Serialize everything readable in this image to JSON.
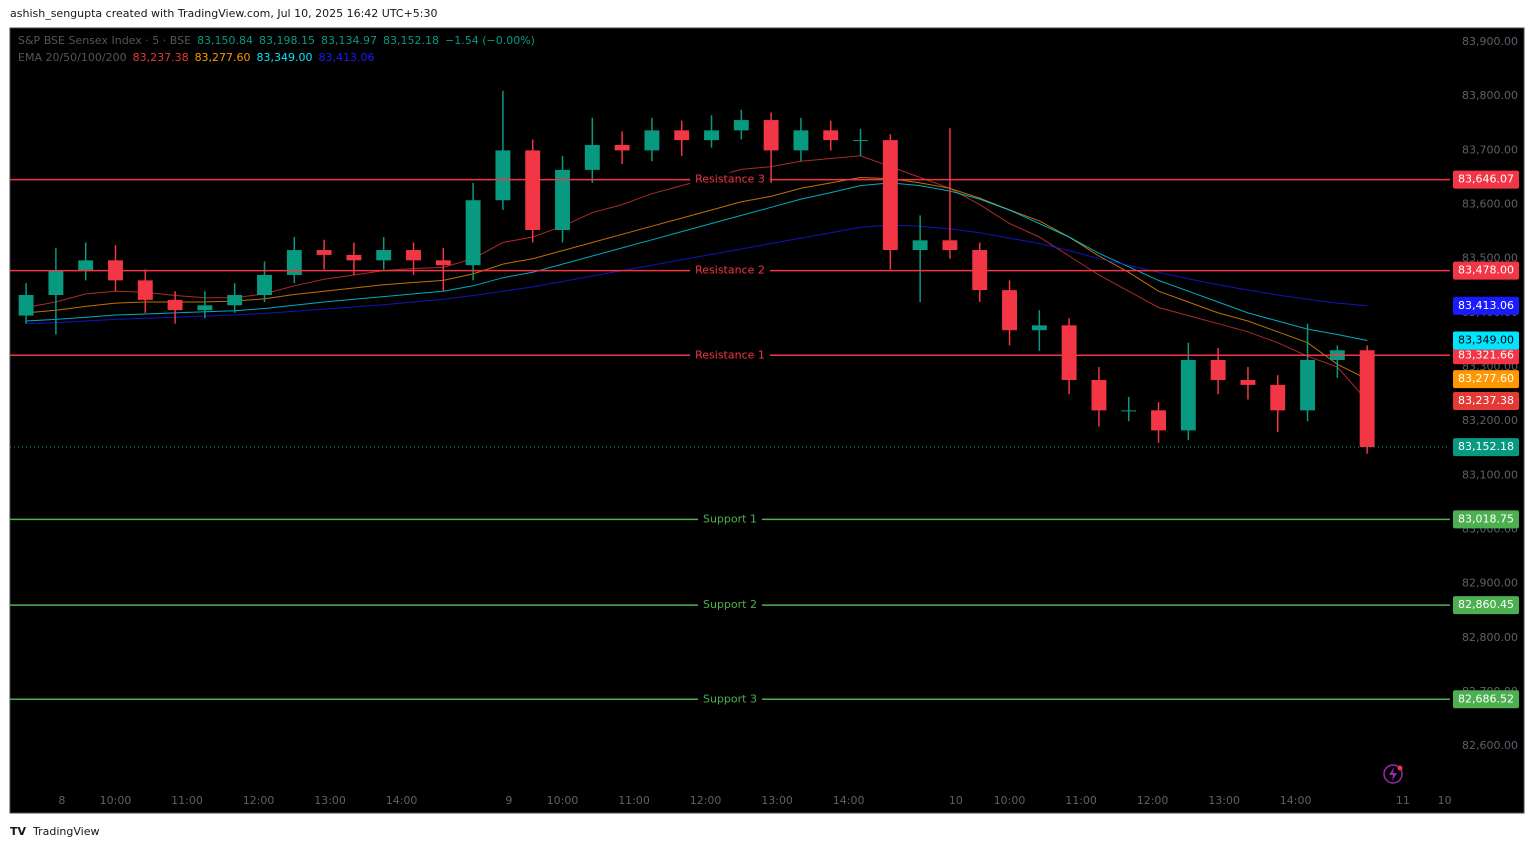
{
  "header": {
    "caption": "ashish_sengupta created with TradingView.com, Jul 10, 2025 16:42 UTC+5:30",
    "footer": "TradingView"
  },
  "chart_data": {
    "type": "candlestick",
    "legend": {
      "title": "S&P BSE Sensex Index · 5 · BSE",
      "ohlc": [
        "83,150.84",
        "83,198.15",
        "83,134.97",
        "83,152.18"
      ],
      "change": "−1.54 (−0.00%)",
      "ema_title": "EMA 20/50/100/200"
    },
    "up_color": "#089981",
    "down_color": "#f23645",
    "xlim": [
      -8.7,
      232.9
    ],
    "xticks": [
      {
        "value": 0,
        "label": "8"
      },
      {
        "value": 9,
        "label": "10:00"
      },
      {
        "value": 21,
        "label": "11:00"
      },
      {
        "value": 33,
        "label": "12:00"
      },
      {
        "value": 45,
        "label": "13:00"
      },
      {
        "value": 57,
        "label": "14:00"
      },
      {
        "value": 75,
        "label": "9"
      },
      {
        "value": 84,
        "label": "10:00"
      },
      {
        "value": 96,
        "label": "11:00"
      },
      {
        "value": 108,
        "label": "12:00"
      },
      {
        "value": 120,
        "label": "13:00"
      },
      {
        "value": 132,
        "label": "14:00"
      },
      {
        "value": 150,
        "label": "10"
      },
      {
        "value": 159,
        "label": "10:00"
      },
      {
        "value": 171,
        "label": "11:00"
      },
      {
        "value": 183,
        "label": "12:00"
      },
      {
        "value": 195,
        "label": "13:00"
      },
      {
        "value": 207,
        "label": "14:00"
      },
      {
        "value": 225,
        "label": "11"
      },
      {
        "value": 232,
        "label": "10"
      }
    ],
    "ylim": [
      82519,
      83926
    ],
    "yticks": [
      {
        "value": 82600,
        "label": "82,600.00"
      },
      {
        "value": 82700,
        "label": "82,700.00"
      },
      {
        "value": 82800,
        "label": "82,800.00"
      },
      {
        "value": 82900,
        "label": "82,900.00"
      },
      {
        "value": 83000,
        "label": "83,000.00"
      },
      {
        "value": 83100,
        "label": "83,100.00"
      },
      {
        "value": 83200,
        "label": "83,200.00"
      },
      {
        "value": 83300,
        "label": "83,300.00"
      },
      {
        "value": 83400,
        "label": "83,400.00"
      },
      {
        "value": 83500,
        "label": "83,500.00"
      },
      {
        "value": 83600,
        "label": "83,600.00"
      },
      {
        "value": 83700,
        "label": "83,700.00"
      },
      {
        "value": 83800,
        "label": "83,800.00"
      },
      {
        "value": 83900,
        "label": "83,900.00"
      }
    ],
    "x": [
      -6,
      -1,
      4,
      9,
      14,
      19,
      24,
      29,
      34,
      39,
      44,
      49,
      54,
      59,
      64,
      69,
      74,
      79,
      84,
      89,
      94,
      99,
      104,
      109,
      114,
      119,
      124,
      129,
      134,
      139,
      144,
      149,
      154,
      159,
      164,
      169,
      174,
      179,
      184,
      189,
      194,
      199,
      204,
      209,
      214,
      219
    ],
    "ohlc": [
      [
        83395,
        83455,
        83380,
        83433
      ],
      [
        83433,
        83520,
        83360,
        83479
      ],
      [
        83479,
        83530,
        83460,
        83497
      ],
      [
        83497,
        83525,
        83440,
        83460
      ],
      [
        83460,
        83480,
        83400,
        83424
      ],
      [
        83424,
        83440,
        83380,
        83405
      ],
      [
        83405,
        83440,
        83390,
        83414
      ],
      [
        83414,
        83455,
        83400,
        83433
      ],
      [
        83433,
        83495,
        83420,
        83470
      ],
      [
        83470,
        83540,
        83455,
        83516
      ],
      [
        83516,
        83535,
        83480,
        83507
      ],
      [
        83507,
        83530,
        83470,
        83497
      ],
      [
        83497,
        83540,
        83480,
        83516
      ],
      [
        83516,
        83530,
        83470,
        83497
      ],
      [
        83497,
        83520,
        83440,
        83488
      ],
      [
        83488,
        83640,
        83460,
        83608
      ],
      [
        83608,
        83810,
        83590,
        83700
      ],
      [
        83700,
        83720,
        83530,
        83553
      ],
      [
        83553,
        83690,
        83530,
        83664
      ],
      [
        83664,
        83760,
        83640,
        83710
      ],
      [
        83710,
        83735,
        83675,
        83700
      ],
      [
        83700,
        83760,
        83680,
        83737
      ],
      [
        83737,
        83755,
        83690,
        83719
      ],
      [
        83719,
        83765,
        83705,
        83737
      ],
      [
        83737,
        83775,
        83720,
        83756
      ],
      [
        83756,
        83770,
        83640,
        83700
      ],
      [
        83700,
        83760,
        83680,
        83737
      ],
      [
        83737,
        83755,
        83700,
        83719
      ],
      [
        83719,
        83740,
        83690,
        83719
      ],
      [
        83719,
        83730,
        83480,
        83516
      ],
      [
        83516,
        83580,
        83420,
        83534
      ],
      [
        83534,
        83741,
        83500,
        83516
      ],
      [
        83516,
        83530,
        83420,
        83442
      ],
      [
        83442,
        83460,
        83340,
        83368
      ],
      [
        83368,
        83405,
        83330,
        83377
      ],
      [
        83377,
        83390,
        83250,
        83276
      ],
      [
        83276,
        83300,
        83190,
        83220
      ],
      [
        83220,
        83245,
        83200,
        83220
      ],
      [
        83220,
        83235,
        83160,
        83183
      ],
      [
        83183,
        83345,
        83165,
        83313
      ],
      [
        83313,
        83335,
        83250,
        83276
      ],
      [
        83276,
        83300,
        83240,
        83267
      ],
      [
        83267,
        83285,
        83180,
        83220
      ],
      [
        83220,
        83380,
        83200,
        83313
      ],
      [
        83313,
        83340,
        83280,
        83331
      ],
      [
        83331,
        83340,
        83140,
        83152.18
      ]
    ],
    "emas": [
      {
        "color": "#e53935",
        "last": {
          "value": 83237.38,
          "label": "83,237.38"
        },
        "values": [
          83410,
          83420,
          83435,
          83440,
          83438,
          83432,
          83428,
          83428,
          83435,
          83450,
          83462,
          83470,
          83478,
          83482,
          83484,
          83500,
          83530,
          83540,
          83560,
          83585,
          83600,
          83620,
          83635,
          83650,
          83665,
          83670,
          83680,
          83685,
          83690,
          83670,
          83650,
          83630,
          83600,
          83565,
          83540,
          83505,
          83470,
          83440,
          83410,
          83395,
          83380,
          83365,
          83345,
          83320,
          83300,
          83237.38
        ]
      },
      {
        "color": "#ff9800",
        "last": {
          "value": 83277.6,
          "label": "83,277.60"
        },
        "values": [
          83400,
          83405,
          83412,
          83418,
          83420,
          83420,
          83420,
          83422,
          83426,
          83434,
          83440,
          83446,
          83452,
          83456,
          83460,
          83472,
          83490,
          83500,
          83515,
          83530,
          83545,
          83560,
          83575,
          83590,
          83605,
          83615,
          83630,
          83640,
          83650,
          83648,
          83640,
          83630,
          83612,
          83590,
          83570,
          83540,
          83505,
          83475,
          83440,
          83420,
          83400,
          83385,
          83365,
          83345,
          83305,
          83277.6
        ]
      },
      {
        "color": "#00e5ff",
        "last": {
          "value": 83349,
          "label": "83,349.00"
        },
        "values": [
          83385,
          83388,
          83392,
          83396,
          83398,
          83400,
          83402,
          83404,
          83408,
          83414,
          83420,
          83425,
          83430,
          83435,
          83440,
          83450,
          83465,
          83475,
          83490,
          83505,
          83520,
          83535,
          83550,
          83565,
          83580,
          83595,
          83610,
          83622,
          83635,
          83640,
          83635,
          83625,
          83610,
          83590,
          83565,
          83540,
          83510,
          83485,
          83460,
          83440,
          83420,
          83400,
          83385,
          83370,
          83360,
          83349
        ]
      },
      {
        "color": "#1a1aff",
        "last": {
          "value": 83413.06,
          "label": "83,413.06"
        },
        "values": [
          83380,
          83382,
          83385,
          83388,
          83390,
          83392,
          83394,
          83396,
          83399,
          83403,
          83407,
          83411,
          83415,
          83420,
          83425,
          83432,
          83440,
          83448,
          83458,
          83468,
          83478,
          83488,
          83498,
          83508,
          83518,
          83528,
          83538,
          83548,
          83558,
          83562,
          83560,
          83555,
          83548,
          83538,
          83528,
          83515,
          83500,
          83488,
          83475,
          83463,
          83452,
          83442,
          83433,
          83425,
          83418,
          83413.06
        ]
      }
    ],
    "levels": [
      {
        "name": "Resistance 3",
        "value": 83646.07,
        "label": "83,646.07",
        "color": "#f23645"
      },
      {
        "name": "Resistance 2",
        "value": 83478.0,
        "label": "83,478.00",
        "color": "#f23645"
      },
      {
        "name": "Resistance 1",
        "value": 83321.66,
        "label": "83,321.66",
        "color": "#f23645"
      },
      {
        "name": "Support 1",
        "value": 83018.75,
        "label": "83,018.75",
        "color": "#4caf50"
      },
      {
        "name": "Support 2",
        "value": 82860.45,
        "label": "82,860.45",
        "color": "#4caf50"
      },
      {
        "name": "Support 3",
        "value": 82686.52,
        "label": "82,686.52",
        "color": "#4caf50"
      }
    ],
    "last_price": {
      "value": 83152.18,
      "label": "83,152.18",
      "color": "#089981"
    }
  }
}
